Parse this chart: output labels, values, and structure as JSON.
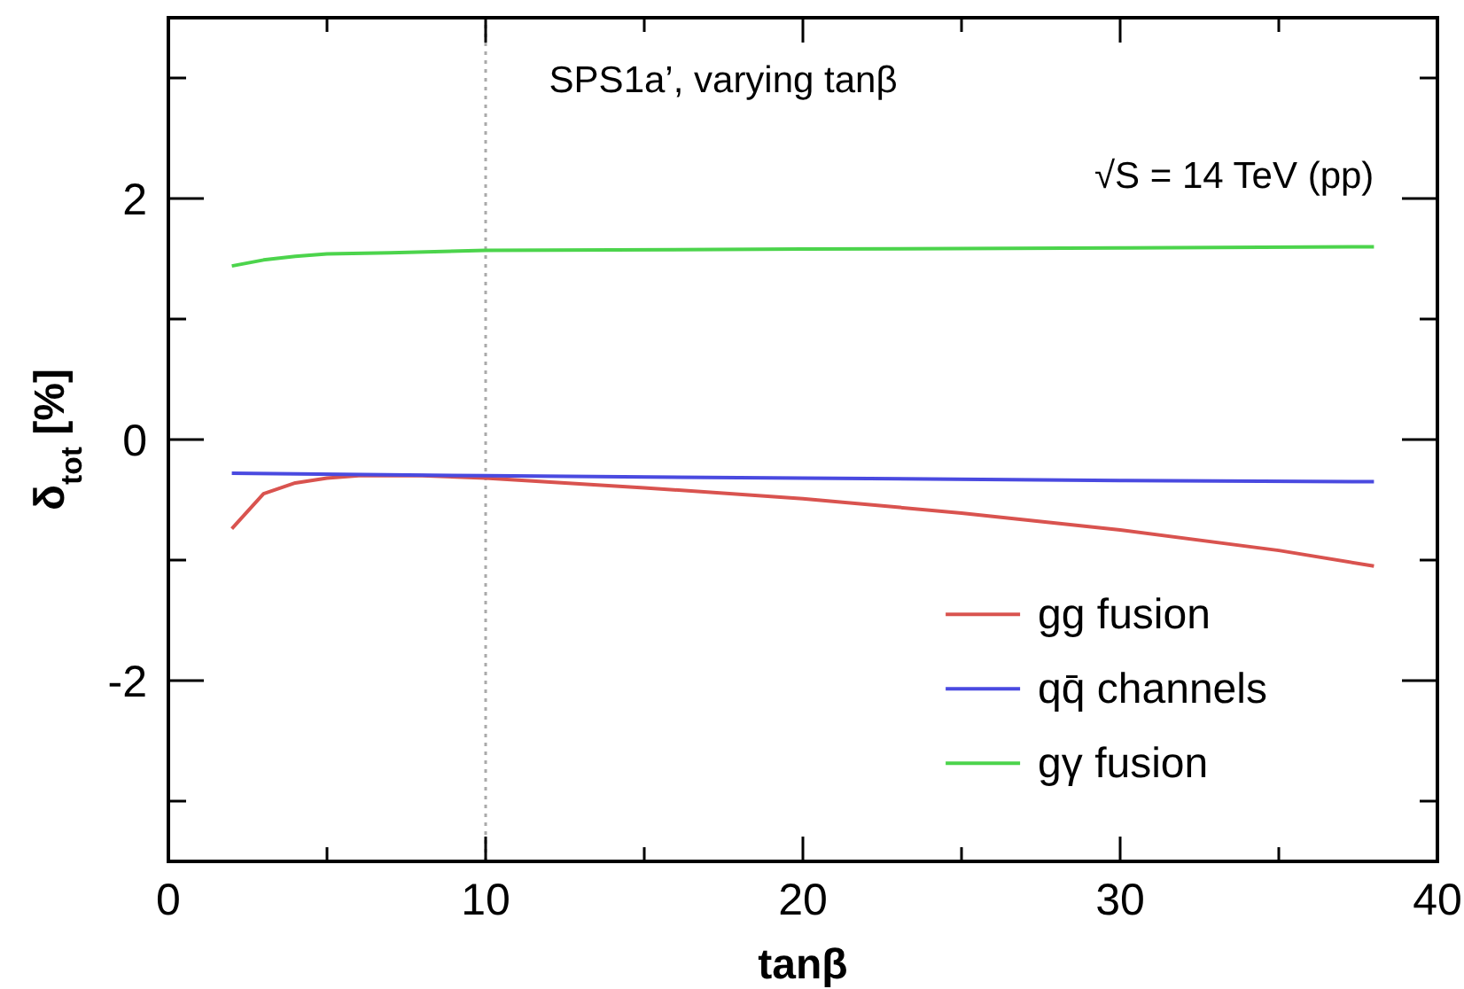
{
  "chart_data": {
    "type": "line",
    "xlabel": "tanβ",
    "ylabel": "δ$_{tot}$ [%]",
    "annotations": [
      "SPS1a’, varying tanβ",
      "√S = 14 TeV (pp)"
    ],
    "xlim": [
      0,
      40
    ],
    "xticks": [
      0,
      {
        "value": 5,
        "label": null
      },
      10,
      {
        "value": 15,
        "label": null
      },
      20,
      {
        "value": 25,
        "label": null
      },
      30,
      {
        "value": 35,
        "label": null
      },
      40
    ],
    "ylim": [
      -3.5,
      3.5
    ],
    "yticks": [
      {
        "value": -3,
        "label": null
      },
      -2,
      {
        "value": -1,
        "label": null
      },
      0,
      {
        "value": 1,
        "label": null
      },
      2,
      {
        "value": 3,
        "label": null
      }
    ],
    "grid": false,
    "legend": "bottom right",
    "line_style": "solid",
    "marker": "none",
    "ref_lines": [
      {
        "axis": "x",
        "value": 10,
        "color": "#aaaaaa",
        "line_style": "dotted"
      }
    ],
    "series": [
      {
        "name": "gg fusion",
        "color": "#d9534f",
        "x": [
          2,
          3,
          4,
          5,
          6,
          8,
          10,
          15,
          20,
          25,
          30,
          35,
          38
        ],
        "values": [
          -0.74,
          -0.45,
          -0.36,
          -0.32,
          -0.3,
          -0.3,
          -0.32,
          -0.4,
          -0.49,
          -0.61,
          -0.75,
          -0.92,
          -1.05
        ]
      },
      {
        "name": "qq̄ channels",
        "color": "#4a4ae0",
        "x": [
          2,
          10,
          20,
          30,
          38
        ],
        "values": [
          -0.28,
          -0.3,
          -0.32,
          -0.34,
          -0.35
        ]
      },
      {
        "name": "gγ fusion",
        "color": "#4cd44c",
        "x": [
          2,
          3,
          4,
          5,
          7,
          10,
          20,
          30,
          38
        ],
        "values": [
          1.44,
          1.49,
          1.52,
          1.54,
          1.55,
          1.57,
          1.58,
          1.59,
          1.6
        ]
      }
    ]
  }
}
